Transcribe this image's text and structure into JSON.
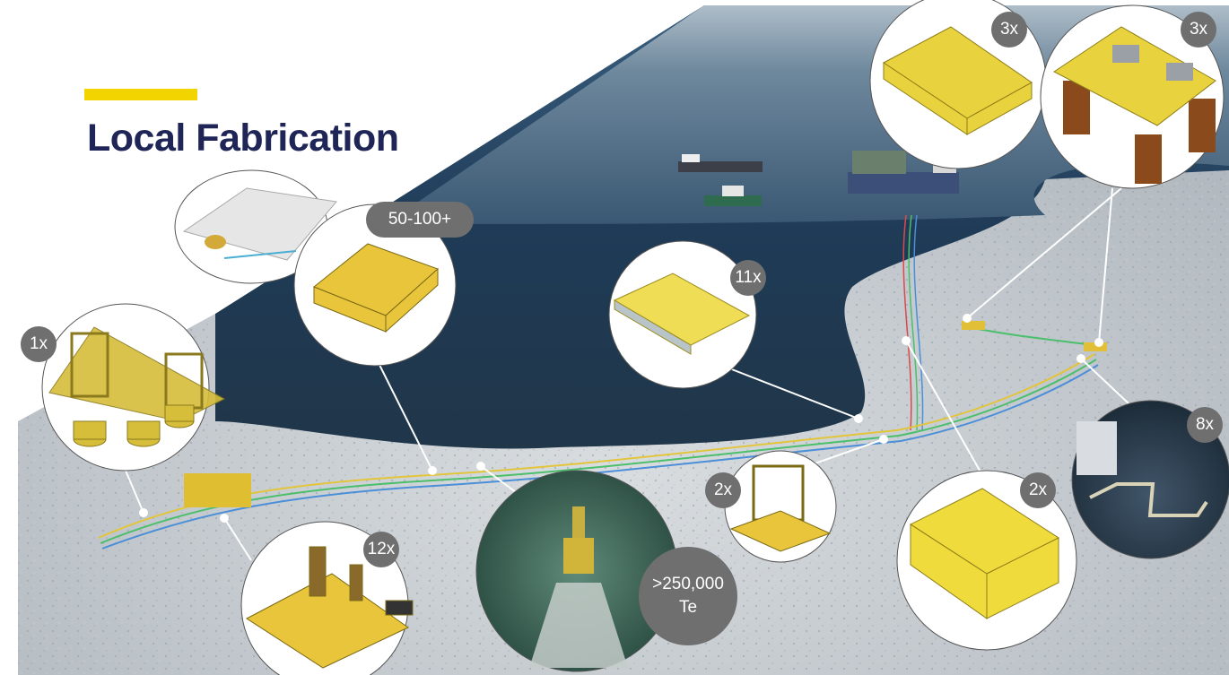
{
  "slide": {
    "title": "Local Fabrication",
    "accent_color": "#f2d500",
    "title_color": "#1f2657"
  },
  "callouts": [
    {
      "id": "subsea-frame",
      "label": "1x",
      "icon": "subsea-protection-frame-icon"
    },
    {
      "id": "mattresses",
      "label": "50-100+",
      "icon": "concrete-mattress-icon"
    },
    {
      "id": "manifold-small",
      "label": "11x",
      "icon": "manifold-structure-icon"
    },
    {
      "id": "topside-a",
      "label": "3x",
      "icon": "topside-module-icon"
    },
    {
      "id": "topside-b",
      "label": "3x",
      "icon": "platform-jacket-icon"
    },
    {
      "id": "rock-dump",
      "label_line1": ">250,000",
      "label_line2": "Te",
      "icon": "rock-dumping-icon"
    },
    {
      "id": "plet",
      "label": "12x",
      "icon": "pipeline-end-termination-icon"
    },
    {
      "id": "riser-base",
      "label": "2x",
      "icon": "riser-base-icon"
    },
    {
      "id": "manifold-large",
      "label": "2x",
      "icon": "subsea-manifold-icon"
    },
    {
      "id": "spools",
      "label": "8x",
      "icon": "spool-installation-icon"
    }
  ]
}
